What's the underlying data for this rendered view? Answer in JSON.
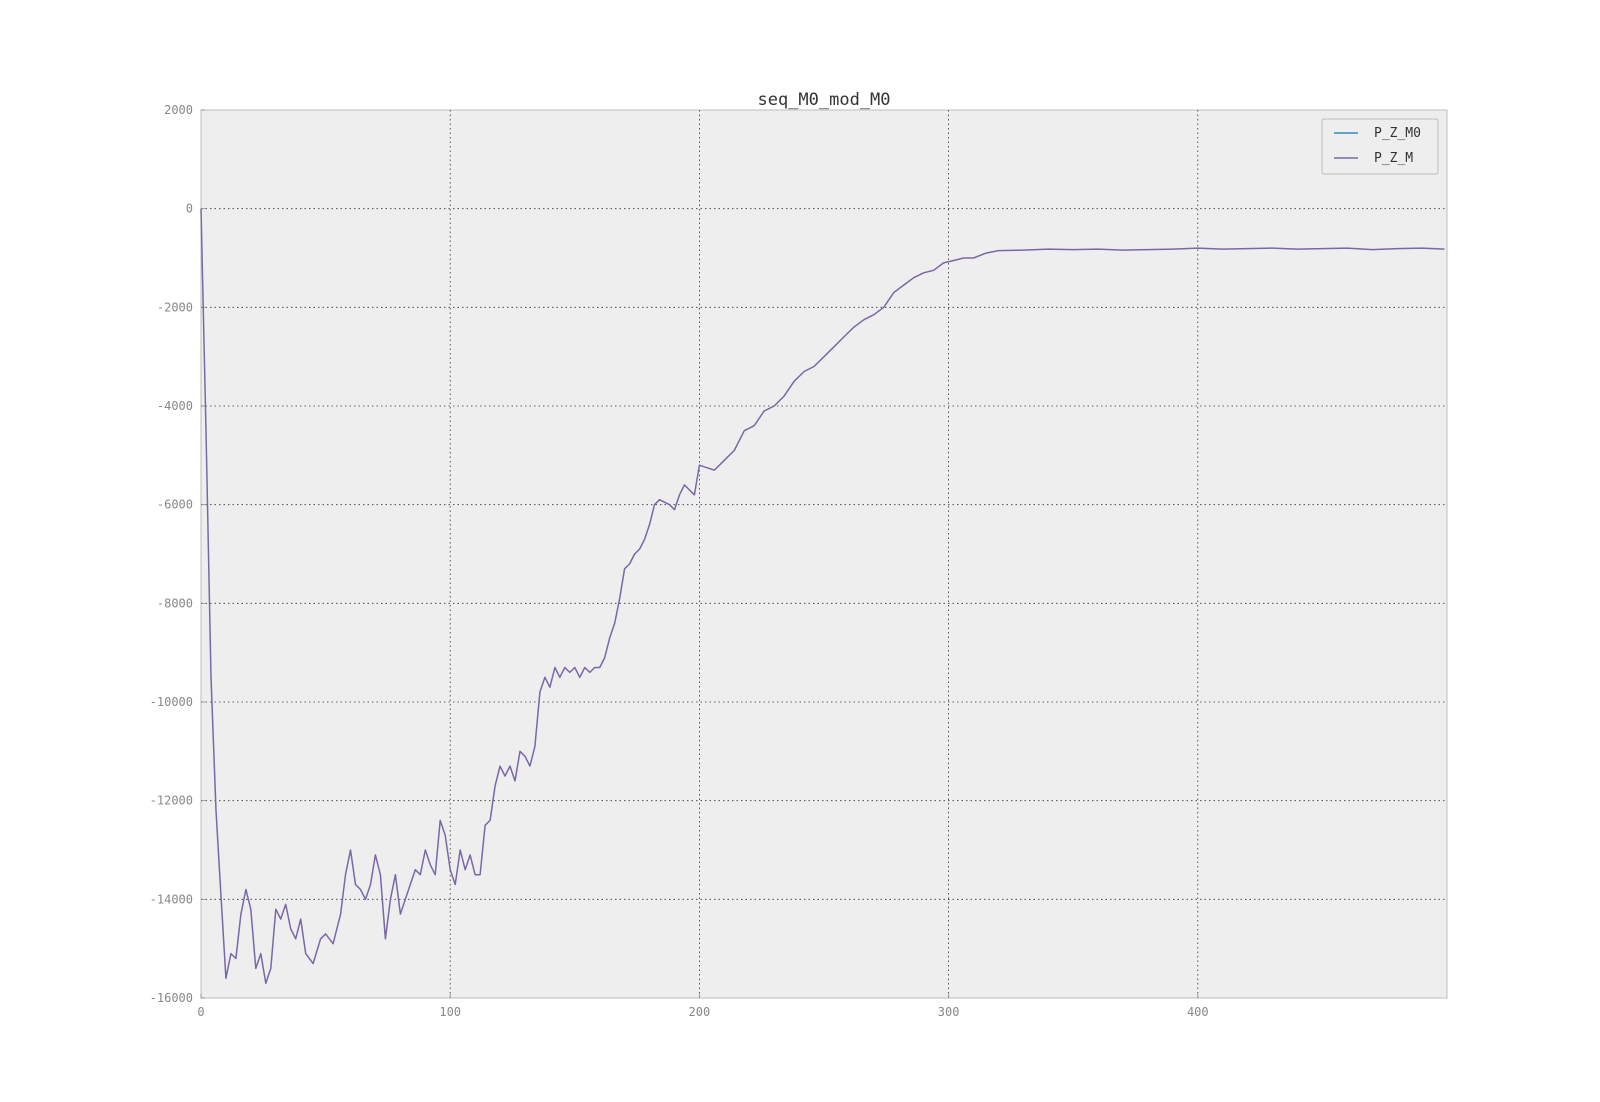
{
  "chart_data": {
    "type": "line",
    "title": "seq_M0_mod_M0",
    "xlabel": "",
    "ylabel": "",
    "xlim": [
      0,
      500
    ],
    "ylim": [
      -16000,
      2000
    ],
    "xticks": [
      0,
      100,
      200,
      300,
      400
    ],
    "yticks": [
      2000,
      0,
      -2000,
      -4000,
      -6000,
      -8000,
      -10000,
      -12000,
      -14000,
      -16000
    ],
    "grid": true,
    "legend_position": "top-right",
    "colors": {
      "P_Z_M0": "#348abd",
      "P_Z_M": "#7a68a6",
      "background": "#eeeeee",
      "frame": "#bcbcbc"
    },
    "series": [
      {
        "name": "P_Z_M0",
        "x": [],
        "y": []
      },
      {
        "name": "P_Z_M",
        "x": [
          0,
          2,
          4,
          6,
          8,
          10,
          12,
          14,
          16,
          18,
          20,
          22,
          24,
          26,
          28,
          30,
          32,
          34,
          36,
          38,
          40,
          42,
          45,
          48,
          50,
          53,
          56,
          58,
          60,
          62,
          64,
          66,
          68,
          70,
          72,
          74,
          76,
          78,
          80,
          82,
          84,
          86,
          88,
          90,
          92,
          94,
          96,
          98,
          100,
          102,
          104,
          106,
          108,
          110,
          112,
          114,
          116,
          118,
          120,
          122,
          124,
          126,
          128,
          130,
          132,
          134,
          136,
          138,
          140,
          142,
          144,
          146,
          148,
          150,
          152,
          154,
          156,
          158,
          160,
          162,
          164,
          166,
          168,
          170,
          172,
          174,
          176,
          178,
          180,
          182,
          184,
          186,
          188,
          190,
          192,
          194,
          196,
          198,
          200,
          203,
          206,
          210,
          214,
          218,
          222,
          226,
          230,
          234,
          238,
          242,
          246,
          250,
          254,
          258,
          262,
          266,
          270,
          274,
          278,
          282,
          286,
          290,
          294,
          298,
          302,
          306,
          310,
          315,
          320,
          330,
          340,
          350,
          360,
          370,
          380,
          390,
          400,
          410,
          420,
          430,
          440,
          450,
          460,
          470,
          480,
          490,
          499
        ],
        "y": [
          0,
          -4500,
          -9500,
          -12200,
          -13900,
          -15600,
          -15100,
          -15200,
          -14300,
          -13800,
          -14200,
          -15400,
          -15100,
          -15700,
          -15400,
          -14200,
          -14400,
          -14100,
          -14600,
          -14800,
          -14400,
          -15100,
          -15300,
          -14800,
          -14700,
          -14900,
          -14300,
          -13500,
          -13000,
          -13700,
          -13800,
          -14000,
          -13700,
          -13100,
          -13500,
          -14800,
          -14000,
          -13500,
          -14300,
          -14000,
          -13700,
          -13400,
          -13500,
          -13000,
          -13300,
          -13500,
          -12400,
          -12700,
          -13400,
          -13700,
          -13000,
          -13400,
          -13100,
          -13500,
          -13500,
          -12500,
          -12400,
          -11700,
          -11300,
          -11500,
          -11300,
          -11600,
          -11000,
          -11100,
          -11300,
          -10900,
          -9800,
          -9500,
          -9700,
          -9300,
          -9500,
          -9300,
          -9400,
          -9300,
          -9500,
          -9300,
          -9400,
          -9300,
          -9300,
          -9100,
          -8700,
          -8400,
          -7900,
          -7300,
          -7200,
          -7000,
          -6900,
          -6700,
          -6400,
          -6000,
          -5900,
          -5950,
          -6000,
          -6100,
          -5800,
          -5600,
          -5700,
          -5800,
          -5200,
          -5250,
          -5300,
          -5100,
          -4900,
          -4500,
          -4400,
          -4100,
          -4000,
          -3800,
          -3500,
          -3300,
          -3200,
          -3000,
          -2800,
          -2600,
          -2400,
          -2250,
          -2150,
          -2000,
          -1700,
          -1550,
          -1400,
          -1300,
          -1250,
          -1100,
          -1050,
          -1000,
          -1000,
          -900,
          -850,
          -840,
          -820,
          -830,
          -820,
          -840,
          -830,
          -820,
          -800,
          -820,
          -810,
          -800,
          -820,
          -810,
          -800,
          -830,
          -810,
          -800,
          -820
        ]
      }
    ]
  }
}
